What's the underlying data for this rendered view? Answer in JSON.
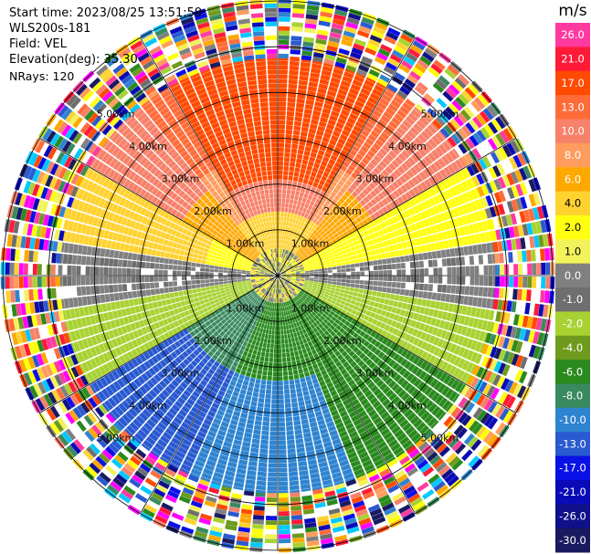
{
  "header": {
    "start_time": "Start time: 2023/08/25 13:51:59",
    "instrument": "WLS200s-181",
    "field": "Field: VEL",
    "elevation": "Elevation(deg): 35.30",
    "nrays": "NRays: 120"
  },
  "chart_data": {
    "type": "ppi",
    "field": "VEL",
    "nrays": 120,
    "range_rings_km": [
      1,
      2,
      3,
      4,
      5
    ],
    "ring_label_text": [
      "1.00km",
      "2.00km",
      "3.00km",
      "4.00km",
      "5.00km"
    ],
    "max_range_km": 6.0,
    "azimuth_lines_deg": [
      0,
      30,
      60,
      90,
      120,
      150,
      180,
      210,
      240,
      270,
      300,
      330
    ],
    "colorbar": {
      "title": "m/s",
      "bands": [
        {
          "label": "26.0",
          "color": "#ff3aa0"
        },
        {
          "label": "21.0",
          "color": "#ff1a38"
        },
        {
          "label": "17.0",
          "color": "#ff4a00"
        },
        {
          "label": "13.0",
          "color": "#ff6c3a"
        },
        {
          "label": "10.0",
          "color": "#f7816a"
        },
        {
          "label": "8.0",
          "color": "#ff9c5e"
        },
        {
          "label": "6.0",
          "color": "#ffa800"
        },
        {
          "label": "4.0",
          "color": "#ffd230"
        },
        {
          "label": "2.0",
          "color": "#ffff10"
        },
        {
          "label": "1.0",
          "color": "#f2f25a"
        },
        {
          "label": "0.0",
          "color": "#808080"
        },
        {
          "label": "-1.0",
          "color": "#6e6e6e"
        },
        {
          "label": "-2.0",
          "color": "#a8d232"
        },
        {
          "label": "-4.0",
          "color": "#6e9a1e"
        },
        {
          "label": "-6.0",
          "color": "#2a8a1e"
        },
        {
          "label": "-8.0",
          "color": "#3a8a60"
        },
        {
          "label": "-10.0",
          "color": "#2f84d0"
        },
        {
          "label": "-13.0",
          "color": "#2a5ad0"
        },
        {
          "label": "-17.0",
          "color": "#0a10e6"
        },
        {
          "label": "-21.0",
          "color": "#0a0ab8"
        },
        {
          "label": "-26.0",
          "color": "#10108a"
        },
        {
          "label": "-30.0",
          "color": "#1a1a60"
        }
      ]
    }
  }
}
